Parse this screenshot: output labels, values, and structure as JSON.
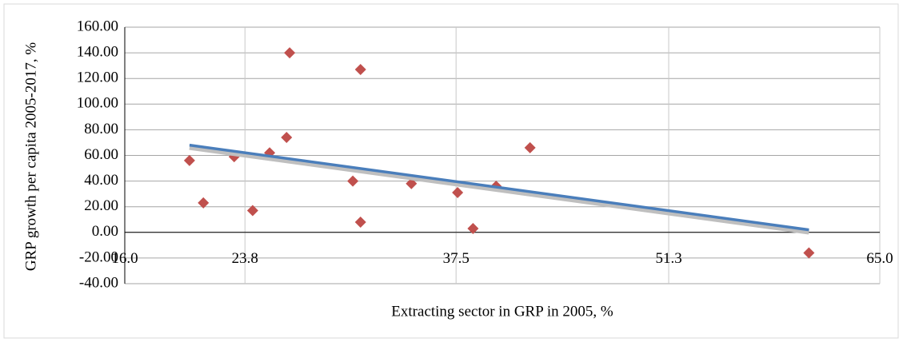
{
  "chart_data": {
    "type": "scatter",
    "x_label": "Extracting sector in GRP in 2005,  %",
    "y_label": "GRP growth per capita 2005-2017, %",
    "x": [
      20.2,
      21.1,
      23.1,
      24.3,
      25.4,
      26.5,
      26.7,
      30.8,
      31.3,
      31.3,
      34.6,
      37.6,
      38.6,
      40.1,
      42.3,
      60.4
    ],
    "values": [
      56,
      23,
      59,
      17,
      62,
      74,
      140,
      40,
      127,
      8,
      38,
      31,
      3,
      36,
      66,
      -16
    ],
    "color": "#c0504d",
    "trendline": {
      "x": [
        20.2,
        60.4
      ],
      "values": [
        68,
        2
      ],
      "color": "#4a7ebb"
    },
    "xlim": [
      16,
      65
    ],
    "xticks": [
      {
        "value": 16,
        "label": "16.0"
      },
      23.8,
      37.5,
      51.3,
      {
        "value": 65,
        "label": "65.0"
      }
    ],
    "ylim": [
      -40,
      160
    ],
    "yticks": [
      {
        "value": -40,
        "label": "-40.00"
      },
      {
        "value": -20,
        "label": "-20.00"
      },
      {
        "value": 0,
        "label": "0.00"
      },
      {
        "value": 20,
        "label": "20.00"
      },
      {
        "value": 40,
        "label": "40.00"
      },
      {
        "value": 60,
        "label": "60.00"
      },
      {
        "value": 80,
        "label": "80.00"
      },
      {
        "value": 100,
        "label": "100.00"
      },
      {
        "value": 120,
        "label": "120.00"
      },
      {
        "value": 140,
        "label": "140.00"
      },
      {
        "value": 160,
        "label": "160.00"
      }
    ],
    "grid": true
  }
}
